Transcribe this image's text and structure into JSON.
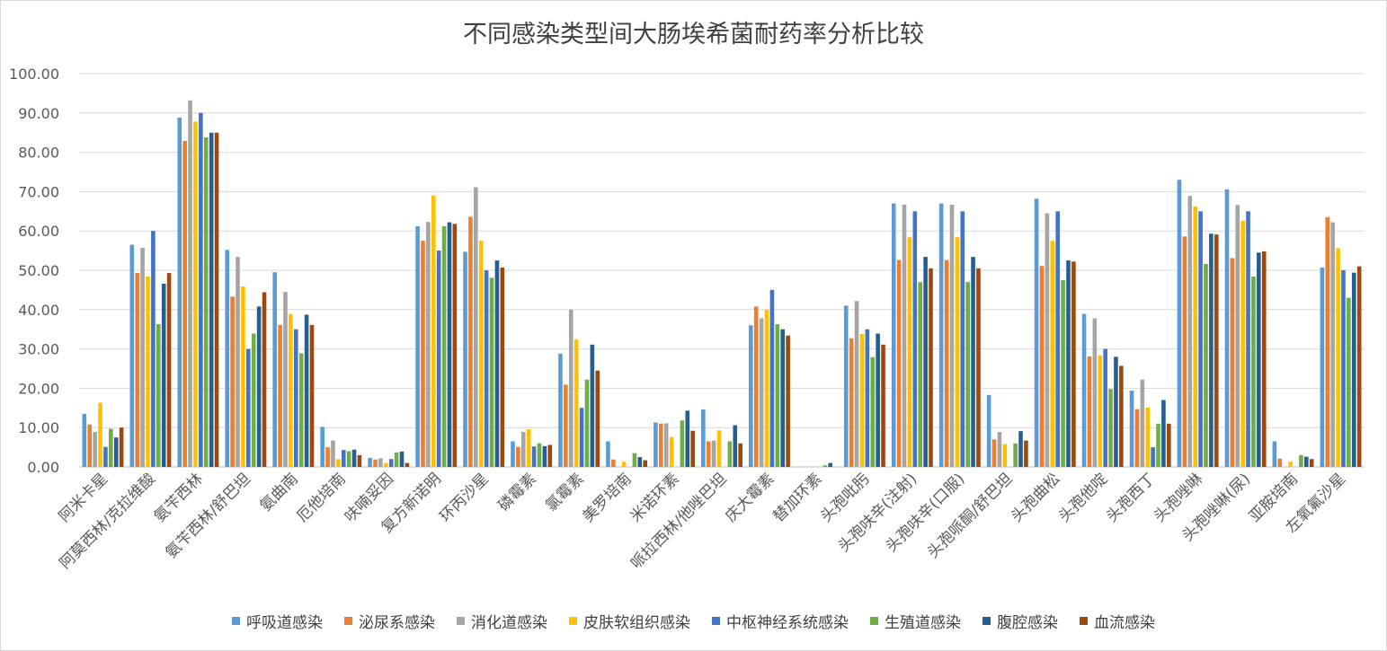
{
  "chart_data": {
    "type": "bar",
    "title": "不同感染类型间大肠埃希菌耐药率分析比较",
    "ylim": [
      0,
      100
    ],
    "yticks": [
      "0.00",
      "10.00",
      "20.00",
      "30.00",
      "40.00",
      "50.00",
      "60.00",
      "70.00",
      "80.00",
      "90.00",
      "100.00"
    ],
    "grid": true,
    "legend_position": "bottom",
    "categories": [
      "阿米卡星",
      "阿莫西林/克拉维酸",
      "氨苄西林",
      "氨苄西林/舒巴坦",
      "氨曲南",
      "厄他培南",
      "呋喃妥因",
      "复方新诺明",
      "环丙沙星",
      "磷霉素",
      "氯霉素",
      "美罗培南",
      "米诺环素",
      "哌拉西林/他唑巴坦",
      "庆大霉素",
      "替加环素",
      "头孢吡肟",
      "头孢呋辛(注射)",
      "头孢呋辛(口服)",
      "头孢哌酮/舒巴坦",
      "头孢曲松",
      "头孢他啶",
      "头孢西丁",
      "头孢唑啉",
      "头孢唑啉(尿)",
      "亚胺培南",
      "左氧氟沙星"
    ],
    "series": [
      {
        "name": "呼吸道感染",
        "color": "#5B9BD5",
        "values": [
          13.5,
          56.5,
          88.8,
          55.2,
          49.5,
          10.2,
          2.3,
          61.2,
          54.7,
          6.5,
          28.8,
          6.5,
          11.3,
          14.6,
          36.0,
          0,
          41.0,
          67.0,
          67.0,
          18.3,
          68.2,
          38.9,
          19.4,
          73.0,
          70.6,
          6.5,
          50.7
        ]
      },
      {
        "name": "泌尿系感染",
        "color": "#ED7D31",
        "values": [
          10.8,
          49.3,
          82.9,
          43.3,
          36.1,
          5.0,
          1.9,
          57.5,
          63.6,
          5.1,
          20.9,
          1.9,
          11.0,
          6.5,
          40.8,
          0,
          32.7,
          52.6,
          52.6,
          7.0,
          51.1,
          28.1,
          14.7,
          58.6,
          53.1,
          2.1,
          63.5
        ]
      },
      {
        "name": "消化道感染",
        "color": "#A5A5A5",
        "values": [
          8.9,
          55.7,
          93.2,
          53.4,
          44.5,
          6.7,
          2.2,
          62.3,
          71.1,
          8.9,
          40.0,
          0,
          11.1,
          6.7,
          37.8,
          0,
          42.2,
          66.7,
          66.7,
          8.9,
          64.5,
          37.8,
          22.2,
          68.9,
          66.6,
          0,
          62.2
        ]
      },
      {
        "name": "皮肤软组织感染",
        "color": "#FFC000",
        "values": [
          16.3,
          48.4,
          87.8,
          45.9,
          38.9,
          2.0,
          1.0,
          69.0,
          57.5,
          9.6,
          32.4,
          1.3,
          7.6,
          9.3,
          40.0,
          0,
          33.8,
          58.4,
          58.4,
          5.8,
          57.5,
          28.4,
          15.1,
          66.2,
          62.6,
          1.3,
          55.6
        ]
      },
      {
        "name": "中枢神经系统感染",
        "color": "#4472C4",
        "values": [
          5.1,
          60.0,
          90.0,
          30.0,
          35.0,
          4.3,
          2.0,
          55.0,
          50.0,
          5.2,
          15.0,
          0,
          0,
          0,
          45.0,
          0,
          35.0,
          65.0,
          65.0,
          0,
          65.0,
          30.0,
          5.0,
          65.0,
          65.0,
          0,
          50.0
        ]
      },
      {
        "name": "生殖道感染",
        "color": "#70AD47",
        "values": [
          9.7,
          36.3,
          83.8,
          33.9,
          28.9,
          4.0,
          3.7,
          61.2,
          48.1,
          6.0,
          22.2,
          3.5,
          11.8,
          6.5,
          36.3,
          0.4,
          27.9,
          47.0,
          47.0,
          6.0,
          47.5,
          19.8,
          11.0,
          51.6,
          48.4,
          3.0,
          43.0
        ]
      },
      {
        "name": "腹腔感染",
        "color": "#255E91",
        "values": [
          7.5,
          46.6,
          85.0,
          40.8,
          38.7,
          4.4,
          3.9,
          62.2,
          52.5,
          5.3,
          31.1,
          2.5,
          14.3,
          10.6,
          35.0,
          1.0,
          33.9,
          53.4,
          53.4,
          9.1,
          52.5,
          28.0,
          17.0,
          59.3,
          54.5,
          2.6,
          49.4
        ]
      },
      {
        "name": "血流感染",
        "color": "#9E480E",
        "values": [
          10.0,
          49.3,
          85.0,
          44.4,
          36.1,
          3.0,
          1.0,
          61.8,
          50.7,
          5.6,
          24.5,
          1.7,
          9.2,
          6.0,
          33.4,
          0,
          31.1,
          50.5,
          50.5,
          6.7,
          52.2,
          25.7,
          11.0,
          59.1,
          54.8,
          2.0,
          51.0
        ]
      }
    ]
  }
}
